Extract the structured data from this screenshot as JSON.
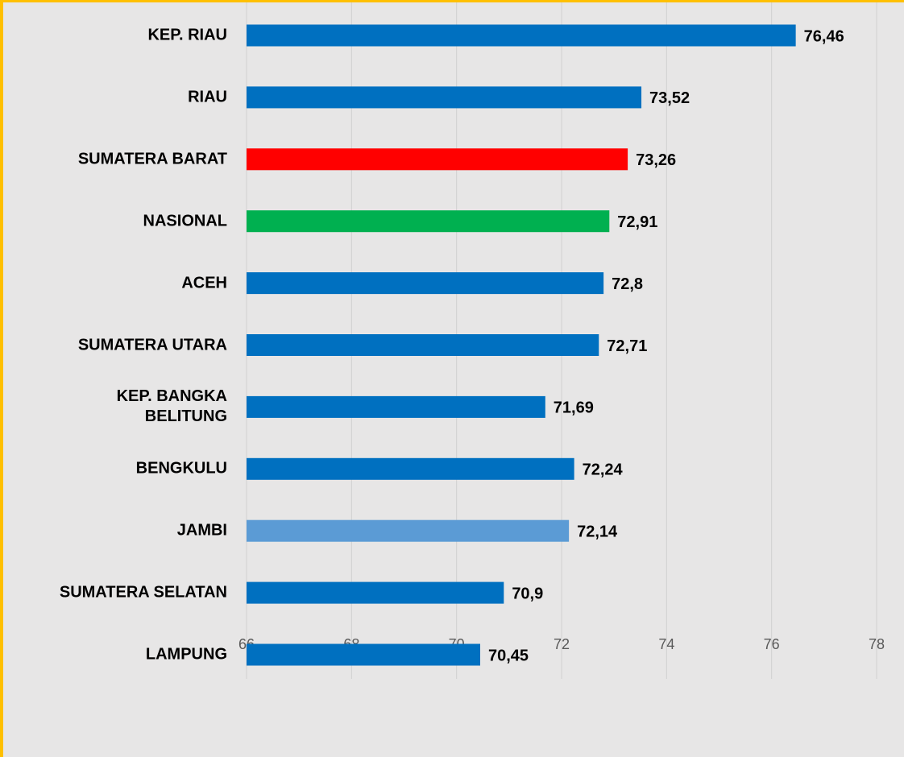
{
  "chart_data": {
    "type": "barh",
    "categories": [
      "KEP. RIAU",
      "RIAU",
      "SUMATERA BARAT",
      "NASIONAL",
      "ACEH",
      "SUMATERA UTARA",
      "KEP. BANGKA\nBELITUNG",
      "BENGKULU",
      "JAMBI",
      "SUMATERA SELATAN",
      "LAMPUNG"
    ],
    "values": [
      76.46,
      73.52,
      73.26,
      72.91,
      72.8,
      72.71,
      71.69,
      72.24,
      72.14,
      70.9,
      70.45
    ],
    "value_labels": [
      "76,46",
      "73,52",
      "73,26",
      "72,91",
      "72,8",
      "72,71",
      "71,69",
      "72,24",
      "72,14",
      "70,9",
      "70,45"
    ],
    "colors": [
      "#0070c0",
      "#0070c0",
      "#ff0000",
      "#00b050",
      "#0070c0",
      "#0070c0",
      "#0070c0",
      "#0070c0",
      "#5b9bd5",
      "#0070c0",
      "#0070c0"
    ],
    "xlim": [
      66,
      78
    ],
    "xticks": [
      66,
      68,
      70,
      72,
      74,
      76,
      78
    ],
    "grid": true
  }
}
